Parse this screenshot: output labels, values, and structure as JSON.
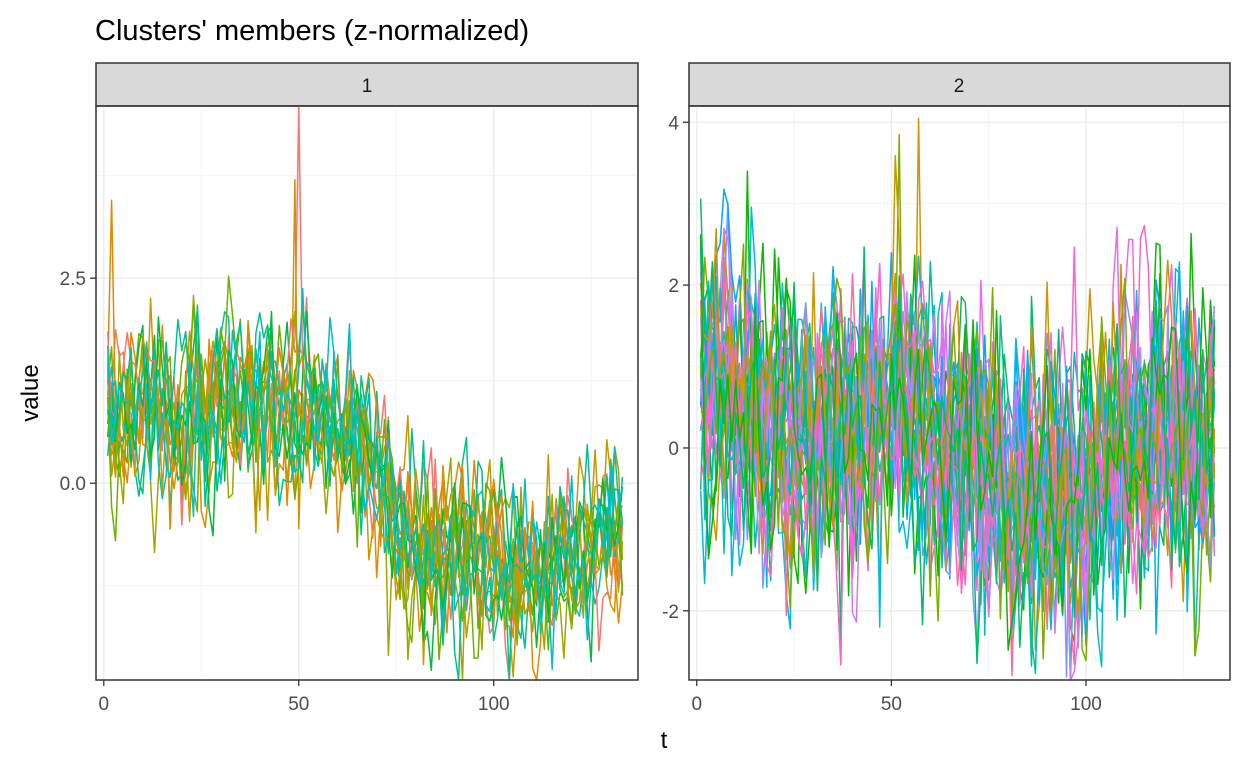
{
  "chart_data": {
    "type": "line",
    "title": "Clusters' members (z-normalized)",
    "xlabel": "t",
    "ylabel": "value",
    "panels": [
      {
        "strip": "1",
        "xlim": [
          -2,
          137
        ],
        "ylim": [
          -2.4,
          4.6
        ],
        "xticks": [
          {
            "value": 0,
            "label": "0"
          },
          {
            "value": 50,
            "label": "50"
          },
          {
            "value": 100,
            "label": "100"
          }
        ],
        "yticks": [
          {
            "value": 0,
            "label": "0.0"
          },
          {
            "value": 2.5,
            "label": "2.5"
          }
        ],
        "n_series": 16,
        "n_points": 133,
        "colors": [
          "#F8766D",
          "#E58700",
          "#C99800",
          "#A3A500",
          "#6BB100",
          "#00BA38",
          "#00C08B",
          "#00BFC4"
        ],
        "profile": [
          {
            "t": 0,
            "value": 0.9
          },
          {
            "t": 20,
            "value": 0.9
          },
          {
            "t": 35,
            "value": 1.0
          },
          {
            "t": 50,
            "value": 0.9
          },
          {
            "t": 65,
            "value": 0.5
          },
          {
            "t": 75,
            "value": -0.6
          },
          {
            "t": 90,
            "value": -0.8
          },
          {
            "t": 105,
            "value": -1.0
          },
          {
            "t": 120,
            "value": -0.9
          },
          {
            "t": 132,
            "value": -0.5
          }
        ],
        "noise_sd": 0.5,
        "spikes": [
          {
            "t": 49,
            "value": 4.6
          },
          {
            "t": 1,
            "value": 3.45
          },
          {
            "t": 48,
            "value": 3.7
          },
          {
            "t": 72,
            "value": -2.1
          },
          {
            "t": 85,
            "value": -2.15
          }
        ]
      },
      {
        "strip": "2",
        "xlim": [
          -2,
          137
        ],
        "ylim": [
          -2.85,
          4.2
        ],
        "xticks": [
          {
            "value": 0,
            "label": "0"
          },
          {
            "value": 50,
            "label": "50"
          },
          {
            "value": 100,
            "label": "100"
          }
        ],
        "yticks": [
          {
            "value": -2,
            "label": "-2"
          },
          {
            "value": 0,
            "label": "0"
          },
          {
            "value": 2,
            "label": "2"
          },
          {
            "value": 4,
            "label": "4"
          }
        ],
        "n_series": 30,
        "n_points": 133,
        "colors": [
          "#CD9600",
          "#7CAE00",
          "#0CB702",
          "#00BE67",
          "#00C19A",
          "#00BFC4",
          "#00B8E7",
          "#00A9FF",
          "#8494FF",
          "#C77CFF",
          "#ED68ED",
          "#FF61CC",
          "#FF68A1"
        ],
        "profile": [
          {
            "t": 0,
            "value": 0.8
          },
          {
            "t": 15,
            "value": 0.3
          },
          {
            "t": 30,
            "value": 0.1
          },
          {
            "t": 50,
            "value": 0.6
          },
          {
            "t": 65,
            "value": 0.2
          },
          {
            "t": 80,
            "value": -0.6
          },
          {
            "t": 95,
            "value": -0.6
          },
          {
            "t": 110,
            "value": 0.1
          },
          {
            "t": 125,
            "value": 0.2
          },
          {
            "t": 132,
            "value": 0.1
          }
        ],
        "noise_sd": 0.8,
        "spikes": [
          {
            "t": 56,
            "value": 4.05
          },
          {
            "t": 51,
            "value": 3.85
          },
          {
            "t": 12,
            "value": 3.4
          },
          {
            "t": 36,
            "value": -2.5
          },
          {
            "t": 127,
            "value": -2.55
          },
          {
            "t": 73,
            "value": -2.3
          },
          {
            "t": 46,
            "value": -2.2
          }
        ]
      }
    ]
  }
}
